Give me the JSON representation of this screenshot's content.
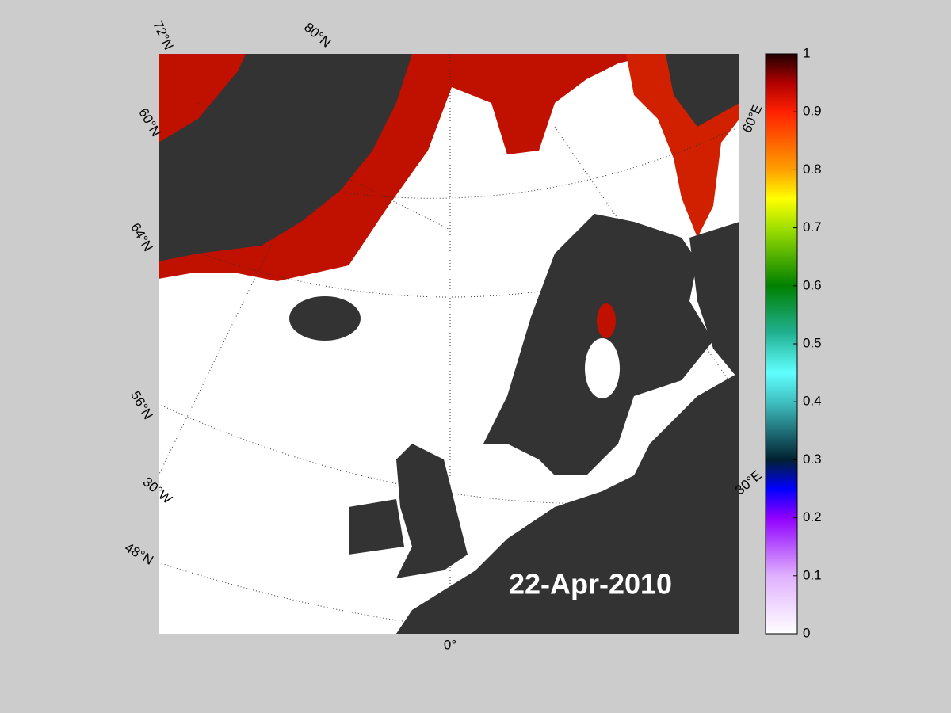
{
  "map": {
    "title": "22-Apr-2010",
    "grid_labels": [
      "72°N",
      "80°N",
      "60°N",
      "64°N",
      "56°N",
      "30°W",
      "48°N",
      "0°",
      "60°E",
      "30°E"
    ],
    "colorbar": {
      "lim": [
        0,
        1
      ],
      "ticks": [
        0,
        0.1,
        0.2,
        0.3,
        0.4,
        0.5,
        0.6,
        0.7,
        0.8,
        0.9,
        1
      ]
    }
  }
}
